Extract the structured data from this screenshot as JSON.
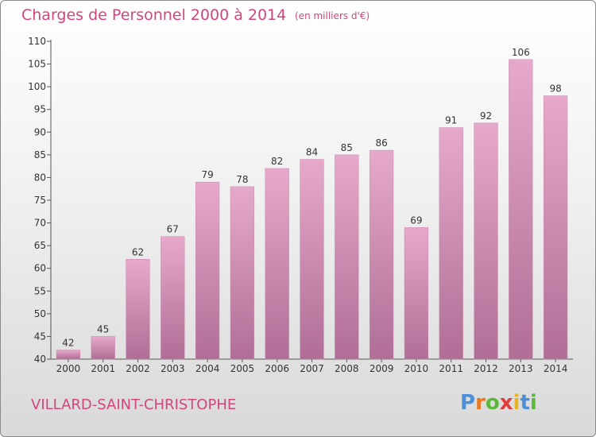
{
  "chart_data": {
    "type": "bar",
    "title": "Charges de Personnel 2000 à 2014",
    "subtitle": "(en milliers d'€)",
    "categories": [
      "2000",
      "2001",
      "2002",
      "2003",
      "2004",
      "2005",
      "2006",
      "2007",
      "2008",
      "2009",
      "2010",
      "2011",
      "2012",
      "2013",
      "2014"
    ],
    "values": [
      42,
      45,
      62,
      67,
      79,
      78,
      82,
      84,
      85,
      86,
      69,
      91,
      92,
      106,
      98
    ],
    "ylim": [
      40,
      110
    ],
    "yticks": [
      40,
      45,
      50,
      55,
      60,
      65,
      70,
      75,
      80,
      85,
      90,
      95,
      100,
      105,
      110
    ],
    "xlabel": "",
    "ylabel": "",
    "grid": false,
    "bar_color": "#d98bb5"
  },
  "footer": {
    "location": "VILLARD-SAINT-CHRISTOPHE",
    "logo_text": "Proxiti"
  },
  "colors": {
    "accent": "#d0467e"
  }
}
